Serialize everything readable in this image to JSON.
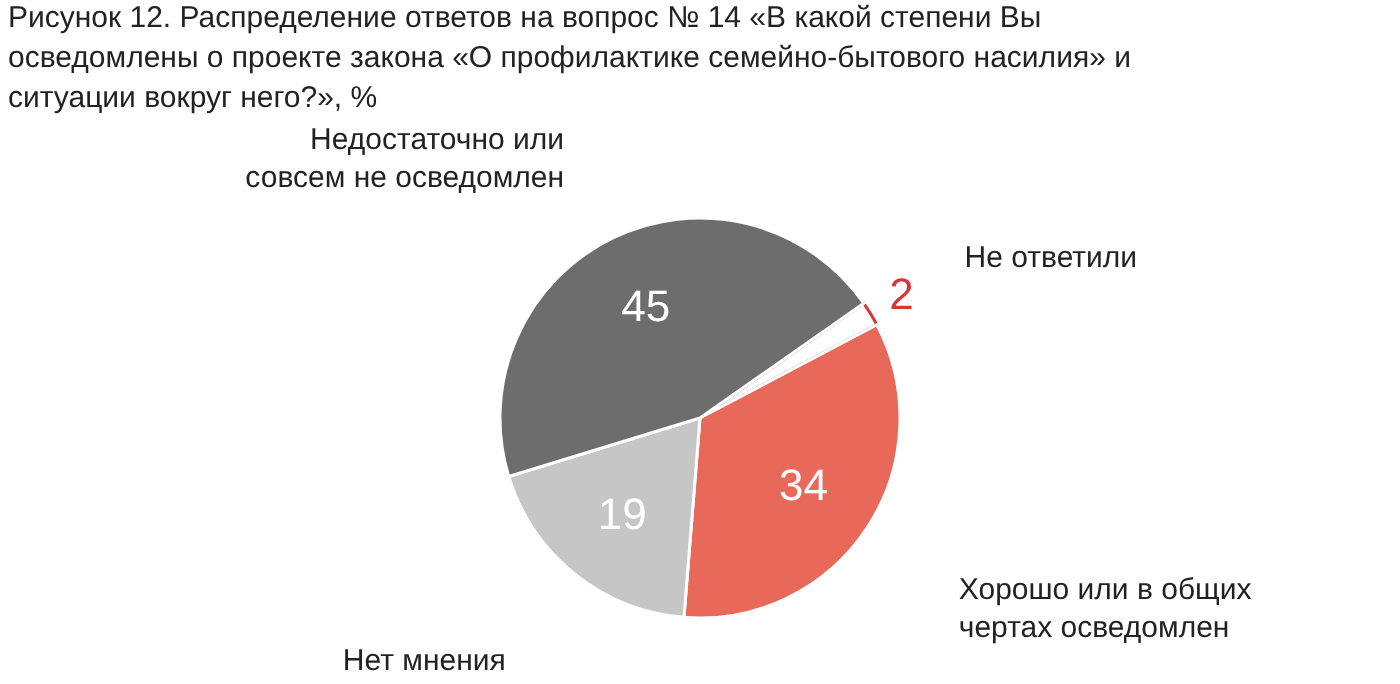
{
  "chart_data": {
    "type": "pie",
    "title": "Рисунок 12. Распределение ответов на вопрос № 14 «В какой степени Вы осведомлены о проекте закона «О профилактике семейно-бытового насилия» и ситуации вокруг него?», %",
    "categories": [
      "Не ответили",
      "Хорошо или в общих чертах осведомлен",
      "Нет мнения",
      "Недостаточно или совсем не осведомлен"
    ],
    "values": [
      2,
      34,
      19,
      45
    ],
    "colors": [
      "#ffffff",
      "#e8685a",
      "#c6c6c6",
      "#6d6d6d"
    ],
    "data_labels": true,
    "legend": false
  }
}
